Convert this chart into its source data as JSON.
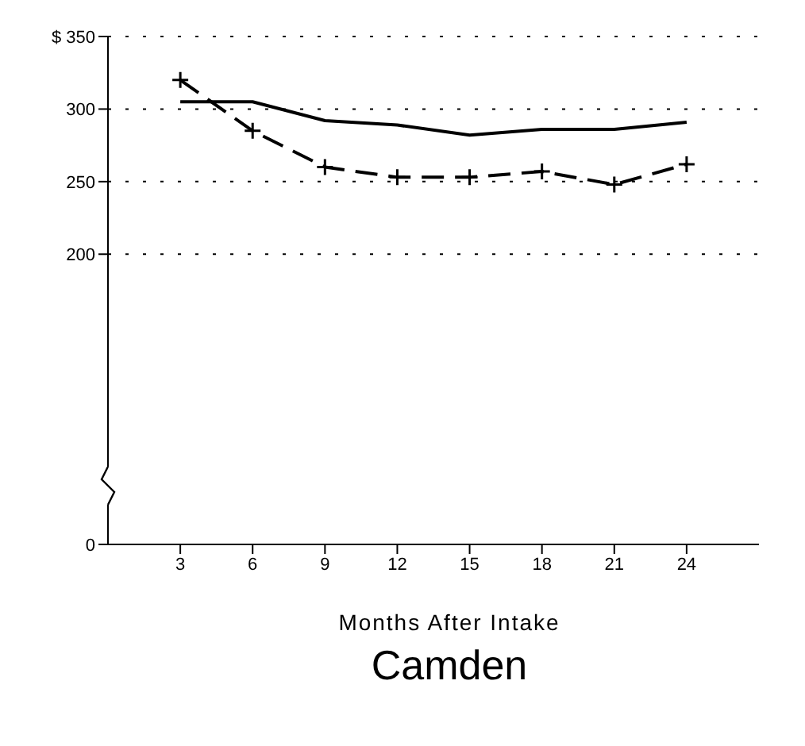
{
  "chart_data": {
    "type": "line",
    "title": "Camden",
    "xlabel": "Months After Intake",
    "x": [
      3,
      6,
      9,
      12,
      15,
      18,
      21,
      24
    ],
    "series": [
      {
        "color": "#000000",
        "values": [
          305,
          305,
          292,
          289,
          282,
          286,
          286,
          291
        ],
        "line_style": "solid",
        "marker": "none"
      },
      {
        "color": "#000000",
        "values": [
          320,
          285,
          260,
          253,
          253,
          257,
          248,
          262
        ],
        "line_style": "dashed",
        "marker": "cross"
      }
    ],
    "xlim": [
      0,
      27
    ],
    "xticks": [
      3,
      6,
      9,
      12,
      15,
      18,
      21,
      24
    ],
    "ylim": [
      0,
      350
    ],
    "yticks": [
      0,
      200,
      250,
      300,
      {
        "value": 350,
        "label": "$ 350"
      }
    ],
    "grid": "y"
  }
}
